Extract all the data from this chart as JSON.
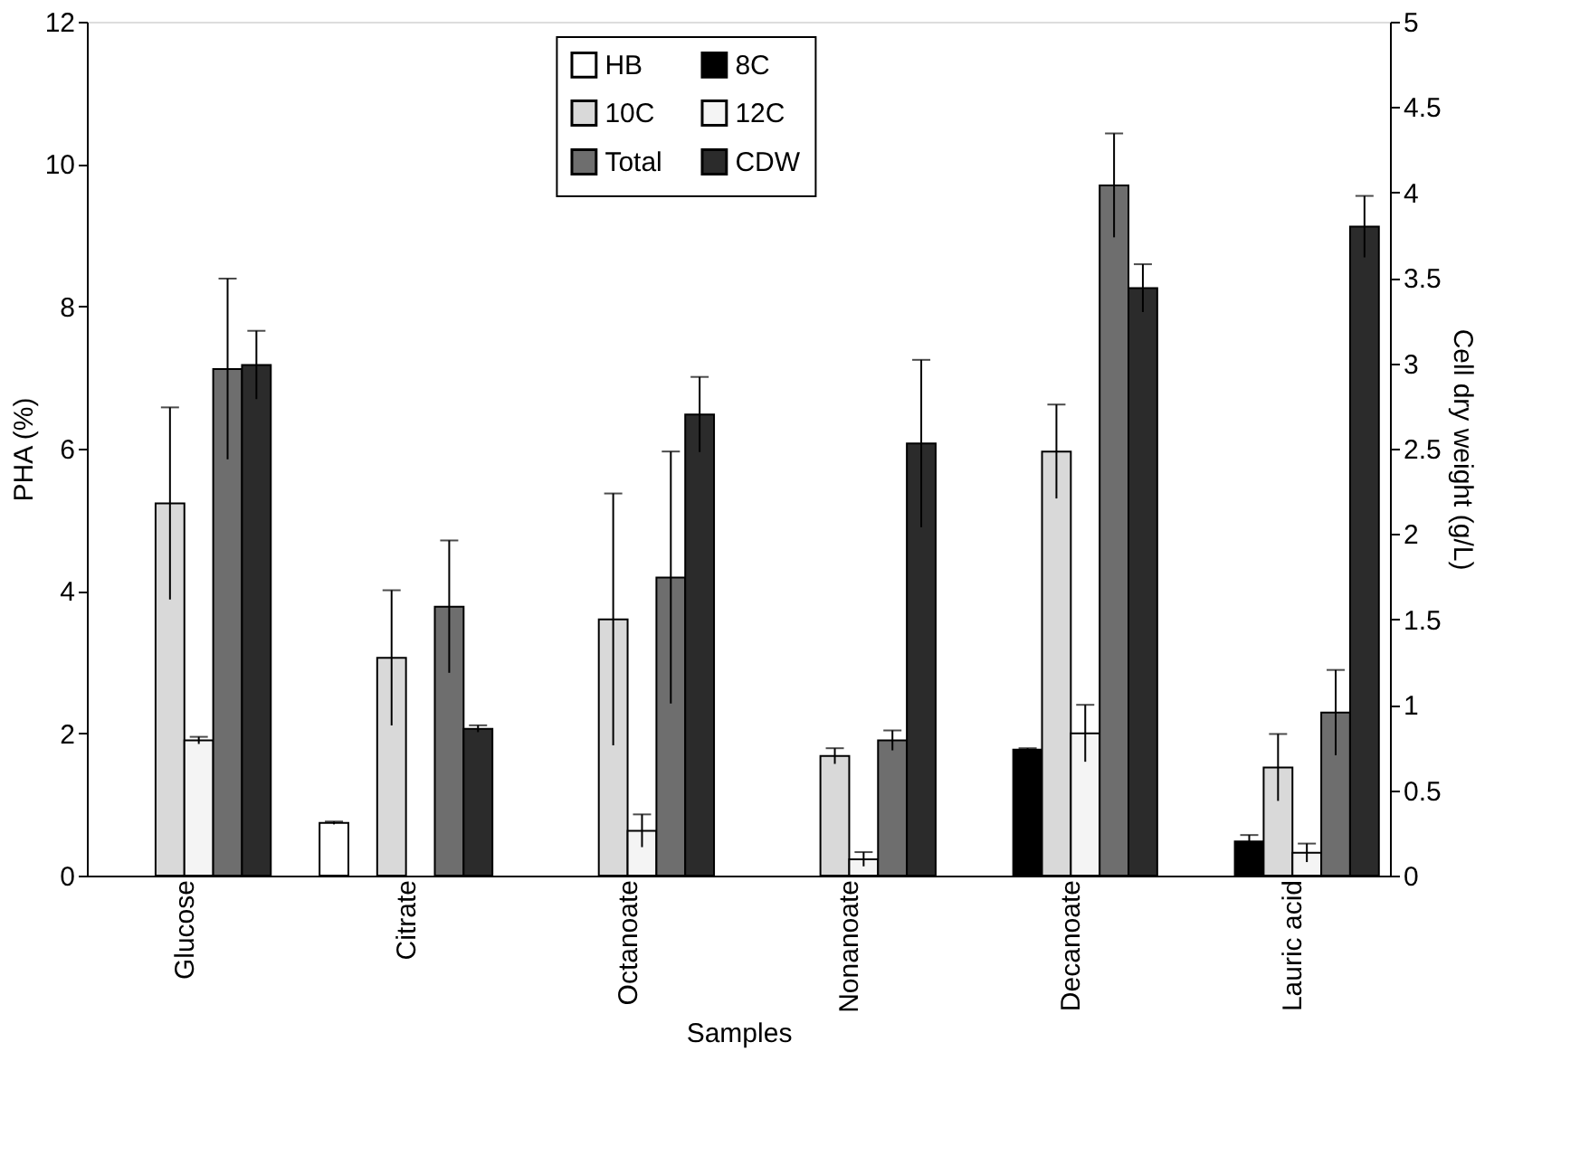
{
  "chart_data": {
    "type": "bar",
    "xlabel": "Samples",
    "ylabel": "PHA (%)",
    "y2label": "Cell dry weight (g/L)",
    "categories": [
      "Glucose",
      "Citrate",
      "Octanoate",
      "Nonanoate",
      "Decanoate",
      "Lauric acid"
    ],
    "ylim": [
      0,
      12
    ],
    "yticks": [
      0,
      2,
      4,
      6,
      8,
      10,
      12
    ],
    "y2lim": [
      0,
      5
    ],
    "y2ticks": [
      0,
      0.5,
      1,
      1.5,
      2,
      2.5,
      3,
      3.5,
      4,
      4.5,
      5
    ],
    "grid": false,
    "legend": "top",
    "series": [
      {
        "name": "HB",
        "color": "#ffffff",
        "values": [
          null,
          0.74,
          null,
          null,
          null,
          null
        ],
        "errors": [
          null,
          0.02,
          null,
          null,
          null,
          null
        ]
      },
      {
        "name": "8C",
        "color": "#000000",
        "values": [
          null,
          null,
          null,
          null,
          1.77,
          0.48
        ],
        "errors": [
          null,
          null,
          null,
          null,
          0.02,
          0.09
        ]
      },
      {
        "name": "10C",
        "color": "#d9d9d9",
        "values": [
          5.23,
          3.06,
          3.6,
          1.68,
          5.96,
          1.52
        ],
        "errors": [
          1.35,
          0.95,
          1.77,
          0.11,
          0.66,
          0.47
        ]
      },
      {
        "name": "12C",
        "color": "#f4f4f4",
        "values": [
          1.9,
          null,
          0.63,
          0.23,
          2.0,
          0.32
        ],
        "errors": [
          0.05,
          null,
          0.23,
          0.1,
          0.4,
          0.13
        ]
      },
      {
        "name": "Total",
        "color": "#6e6e6e",
        "values": [
          7.12,
          3.78,
          4.19,
          1.9,
          9.7,
          2.29
        ],
        "errors": [
          1.27,
          0.93,
          1.77,
          0.14,
          0.73,
          0.6
        ]
      },
      {
        "name": "CDW",
        "color": "#2b2b2b",
        "axis": "y2",
        "values": [
          2.99,
          0.86,
          2.7,
          2.53,
          3.44,
          3.8
        ],
        "errors": [
          0.2,
          0.02,
          0.22,
          0.49,
          0.14,
          0.18
        ]
      }
    ]
  }
}
